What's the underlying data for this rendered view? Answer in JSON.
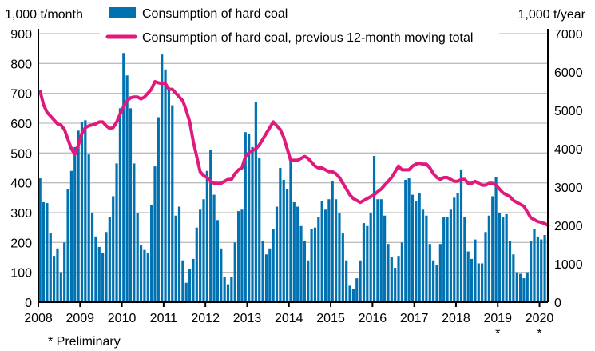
{
  "chart_data": {
    "type": "bar+line",
    "ylabel_left": "1,000 t/month",
    "ylabel_right": "1,000 t/year",
    "ylim_left": [
      0,
      900
    ],
    "ylim_right": [
      0,
      7000
    ],
    "yticks_left": [
      "0",
      "100",
      "200",
      "300",
      "400",
      "500",
      "600",
      "700",
      "800",
      "900"
    ],
    "yticks_right": [
      "0",
      "1000",
      "2000",
      "3000",
      "4000",
      "5000",
      "6000",
      "7000"
    ],
    "xticks": [
      "2008",
      "2009",
      "2010",
      "2011",
      "2012",
      "2013",
      "2014",
      "2015",
      "2016",
      "2017",
      "2018",
      "2019",
      "2020"
    ],
    "xtick_marks": [
      "",
      "",
      "",
      "",
      "",
      "",
      "",
      "",
      "",
      "",
      "",
      "*",
      "*"
    ],
    "footnote": "* Preliminary",
    "grid": true,
    "legend_placement": "top",
    "x_start": "2008-01",
    "x_end": "2020-03",
    "series": [
      {
        "name": "Consumption of hard coal",
        "type": "bar",
        "axis": "left",
        "color": "#0072b2",
        "values": [
          415,
          335,
          332,
          232,
          155,
          180,
          100,
          200,
          380,
          440,
          520,
          575,
          605,
          610,
          495,
          300,
          220,
          185,
          165,
          235,
          285,
          355,
          465,
          650,
          835,
          760,
          650,
          465,
          300,
          190,
          175,
          165,
          325,
          455,
          620,
          830,
          780,
          720,
          660,
          290,
          320,
          140,
          65,
          110,
          145,
          250,
          310,
          345,
          440,
          510,
          360,
          275,
          180,
          85,
          60,
          85,
          200,
          305,
          310,
          570,
          565,
          520,
          670,
          485,
          205,
          160,
          180,
          245,
          320,
          450,
          410,
          380,
          485,
          335,
          320,
          255,
          205,
          140,
          245,
          250,
          285,
          340,
          310,
          345,
          405,
          345,
          300,
          230,
          140,
          55,
          45,
          80,
          140,
          265,
          255,
          300,
          490,
          345,
          345,
          290,
          195,
          150,
          115,
          155,
          200,
          410,
          415,
          360,
          340,
          365,
          310,
          290,
          195,
          140,
          125,
          195,
          285,
          285,
          310,
          350,
          365,
          445,
          285,
          170,
          145,
          210,
          130,
          130,
          235,
          290,
          355,
          420,
          300,
          285,
          295,
          205,
          160,
          100,
          95,
          80,
          100,
          205,
          245,
          220,
          210,
          225,
          210
        ]
      },
      {
        "name": "Consumption of hard coal, previous 12-month moving total",
        "type": "line",
        "axis": "right",
        "color": "#e0197d",
        "values": [
          5500,
          5150,
          4950,
          4850,
          4750,
          4650,
          4620,
          4500,
          4250,
          4000,
          3850,
          4100,
          4400,
          4550,
          4600,
          4620,
          4650,
          4700,
          4700,
          4600,
          4530,
          4550,
          4700,
          4900,
          5100,
          5250,
          5330,
          5350,
          5350,
          5300,
          5350,
          5450,
          5550,
          5750,
          5720,
          5700,
          5700,
          5550,
          5550,
          5450,
          5350,
          5250,
          5000,
          4700,
          4200,
          3800,
          3400,
          3300,
          3250,
          3150,
          3100,
          3100,
          3100,
          3150,
          3200,
          3200,
          3350,
          3450,
          3500,
          3800,
          3900,
          3950,
          4000,
          4100,
          4250,
          4400,
          4550,
          4700,
          4600,
          4500,
          4300,
          4000,
          3700,
          3700,
          3700,
          3750,
          3800,
          3750,
          3650,
          3550,
          3500,
          3500,
          3450,
          3400,
          3400,
          3350,
          3250,
          3100,
          2950,
          2800,
          2700,
          2650,
          2600,
          2650,
          2700,
          2750,
          2800,
          2880,
          2950,
          3050,
          3150,
          3250,
          3400,
          3550,
          3450,
          3450,
          3450,
          3550,
          3600,
          3620,
          3600,
          3600,
          3500,
          3350,
          3250,
          3200,
          3250,
          3250,
          3200,
          3150,
          3150,
          3200,
          3200,
          3100,
          3100,
          3150,
          3100,
          3050,
          3050,
          3100,
          3100,
          3050,
          2950,
          2850,
          2800,
          2750,
          2650,
          2600,
          2550,
          2500,
          2350,
          2200,
          2150,
          2100,
          2080,
          2050,
          2000
        ]
      }
    ]
  }
}
